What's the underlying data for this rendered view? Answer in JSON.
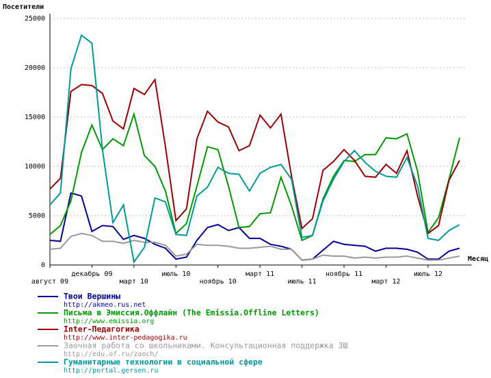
{
  "chart_data": {
    "type": "line",
    "y_label": "Посетители",
    "x_label": "Месяц",
    "categories": [
      "август 09",
      null,
      null,
      null,
      "декабрь 09",
      null,
      null,
      null,
      "март 10",
      null,
      null,
      null,
      "июль 10",
      null,
      null,
      null,
      "ноябрь 10",
      null,
      null,
      null,
      "март 11",
      null,
      null,
      null,
      "июль 11",
      null,
      null,
      null,
      "ноябрь 11",
      null,
      null,
      null,
      "март 12",
      null,
      null,
      null,
      "июль 12",
      null,
      null,
      null
    ],
    "ylim": [
      0,
      25000
    ],
    "yticks": [
      0,
      5000,
      10000,
      15000,
      20000,
      25000
    ],
    "grid": true,
    "series": [
      {
        "name": "Твои Вершины",
        "url": "http://akmeo.rus.net",
        "color": "#000099",
        "values": [
          2500,
          2400,
          7300,
          7000,
          3400,
          4000,
          3900,
          2600,
          3000,
          2700,
          2100,
          1700,
          600,
          800,
          2500,
          3800,
          4100,
          3500,
          3800,
          2700,
          2700,
          2100,
          1900,
          1600,
          500,
          600,
          1500,
          2400,
          2100,
          2000,
          1900,
          1400,
          1700,
          1700,
          1600,
          1300,
          600,
          600,
          1400,
          1700
        ]
      },
      {
        "name": "Письма в Эмиссия.Оффлайн (The Emissia.Offline Letters)",
        "url": "http://www.emissia.org",
        "color": "#009900",
        "values": [
          3100,
          4000,
          6500,
          11400,
          14200,
          11700,
          12800,
          12100,
          15300,
          11100,
          10000,
          7500,
          3200,
          4200,
          8000,
          12000,
          11700,
          8000,
          3800,
          3900,
          5200,
          5300,
          8900,
          6000,
          2500,
          3000,
          6700,
          9000,
          10600,
          10500,
          11200,
          11200,
          12900,
          12800,
          13300,
          9500,
          3300,
          4800,
          8700,
          12900
        ]
      },
      {
        "name": "Inter-Педагогика",
        "url": "http://www.inter-pedagogika.ru",
        "color": "#990000",
        "values": [
          7700,
          8800,
          17600,
          18300,
          18200,
          17400,
          14600,
          13800,
          17900,
          17300,
          18800,
          12000,
          4500,
          5700,
          12800,
          15600,
          14500,
          14000,
          11600,
          12100,
          15200,
          13900,
          15300,
          9000,
          3700,
          4700,
          9600,
          10500,
          11700,
          10600,
          9000,
          8900,
          10200,
          9300,
          11600,
          7000,
          3200,
          4000,
          8600,
          10600
        ]
      },
      {
        "name": "Заочная работа со школьниками. Консультационная поддержка ЗШ",
        "url": "http://edu.of.ru/zaoch/",
        "color": "#999999",
        "values": [
          1600,
          1700,
          2900,
          3200,
          3000,
          2400,
          2400,
          2200,
          2500,
          2300,
          2300,
          2000,
          900,
          1100,
          2100,
          2000,
          2000,
          1900,
          1700,
          1700,
          1800,
          1900,
          1600,
          1600,
          500,
          600,
          1000,
          900,
          900,
          700,
          800,
          700,
          800,
          800,
          900,
          700,
          500,
          500,
          700,
          900
        ]
      },
      {
        "name": "Гуманитарные технологии в социальной сфере",
        "url": "http://portal.gersen.ru",
        "color": "#009999",
        "values": [
          6100,
          7300,
          19900,
          23300,
          22500,
          11700,
          4300,
          6100,
          300,
          1800,
          6800,
          6400,
          3100,
          3000,
          7000,
          7900,
          9900,
          9300,
          9200,
          7500,
          9300,
          9900,
          10200,
          8700,
          2800,
          3000,
          6500,
          8700,
          10500,
          11600,
          10400,
          9500,
          9000,
          8900,
          10900,
          8000,
          2700,
          2500,
          3500,
          4100
        ]
      }
    ]
  }
}
